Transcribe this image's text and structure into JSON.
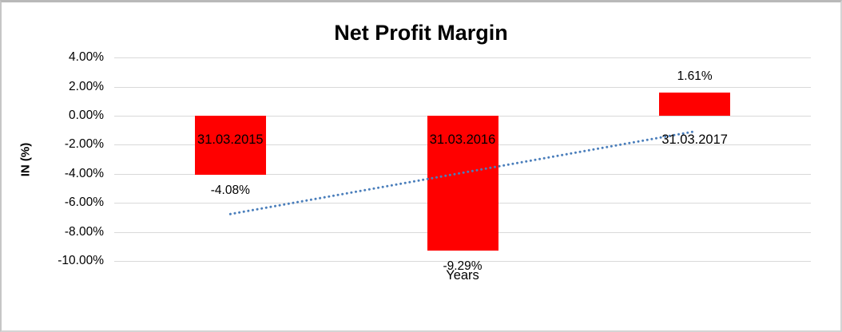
{
  "chart_data": {
    "type": "bar",
    "title": "Net Profit Margin",
    "xlabel": "Years",
    "ylabel": "IN (%)",
    "categories": [
      "31.03.2015",
      "31.03.2016",
      "31.03.2017"
    ],
    "values": [
      -4.08,
      -9.29,
      1.61
    ],
    "data_labels": [
      "-4.08%",
      "-9.29%",
      "1.61%"
    ],
    "bar_color": "#ff0000",
    "ylim": [
      -10,
      4
    ],
    "y_tick_step": 2,
    "y_ticks": [
      {
        "value": 4,
        "label": "4.00%"
      },
      {
        "value": 2,
        "label": "2.00%"
      },
      {
        "value": 0,
        "label": "0.00%"
      },
      {
        "value": -2,
        "label": "-2.00%"
      },
      {
        "value": -4,
        "label": "-4.00%"
      },
      {
        "value": -6,
        "label": "-6.00%"
      },
      {
        "value": -8,
        "label": "-8.00%"
      },
      {
        "value": -10,
        "label": "-10.00%"
      }
    ],
    "grid": true,
    "gridline_color": "#d9d9d9",
    "legend": "none",
    "trendline": {
      "type": "linear",
      "style": "dotted",
      "color": "#4a7ebb",
      "start_value": -6.77,
      "end_value": -1.08
    }
  }
}
